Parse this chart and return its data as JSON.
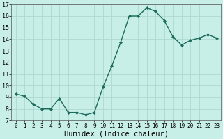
{
  "x": [
    0,
    1,
    2,
    3,
    4,
    5,
    6,
    7,
    8,
    9,
    10,
    11,
    12,
    13,
    14,
    15,
    16,
    17,
    18,
    19,
    20,
    21,
    22,
    23
  ],
  "y": [
    9.3,
    9.1,
    8.4,
    8.0,
    8.0,
    8.9,
    7.7,
    7.7,
    7.5,
    7.7,
    9.9,
    11.7,
    13.7,
    16.0,
    16.0,
    16.7,
    16.4,
    15.6,
    14.2,
    13.5,
    13.9,
    14.1,
    14.4,
    14.1
  ],
  "xlabel": "Humidex (Indice chaleur)",
  "ylim": [
    7,
    17
  ],
  "xlim": [
    -0.5,
    23.5
  ],
  "yticks": [
    7,
    8,
    9,
    10,
    11,
    12,
    13,
    14,
    15,
    16,
    17
  ],
  "xticks": [
    0,
    1,
    2,
    3,
    4,
    5,
    6,
    7,
    8,
    9,
    10,
    11,
    12,
    13,
    14,
    15,
    16,
    17,
    18,
    19,
    20,
    21,
    22,
    23
  ],
  "xtick_labels": [
    "0",
    "1",
    "2",
    "3",
    "4",
    "5",
    "6",
    "7",
    "8",
    "9",
    "10",
    "11",
    "12",
    "13",
    "14",
    "15",
    "16",
    "17",
    "18",
    "19",
    "20",
    "21",
    "22",
    "23"
  ],
  "line_color": "#1a6b5a",
  "marker": "D",
  "marker_size": 2,
  "bg_color": "#c8eee8",
  "grid_color": "#add8d0",
  "line_width": 1.0,
  "tick_fontsize": 5.5,
  "xlabel_fontsize": 7.5,
  "ytick_fontsize": 6.0
}
